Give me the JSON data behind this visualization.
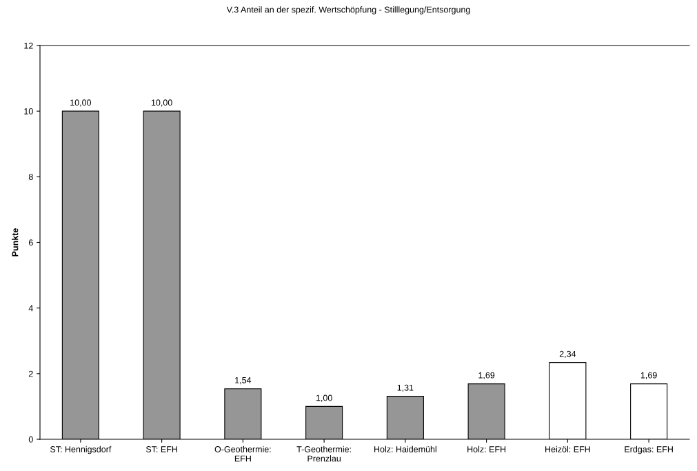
{
  "chart_data": {
    "type": "bar",
    "title": "V.3 Anteil an der spezif. Wertschöpfung - Stilllegung/Entsorgung",
    "ylabel": "Punkte",
    "categories": [
      "ST: Hennigsdorf",
      "ST: EFH",
      "O-Geothermie:\nEFH",
      "T-Geothermie:\nPrenzlau",
      "Holz: Haidemühl",
      "Holz: EFH",
      "Heizöl: EFH",
      "Erdgas: EFH"
    ],
    "values": [
      10.0,
      10.0,
      1.54,
      1.0,
      1.31,
      1.69,
      2.34,
      1.69
    ],
    "colors": [
      "#969696",
      "#969696",
      "#969696",
      "#969696",
      "#969696",
      "#969696",
      "#ffffff",
      "#ffffff"
    ],
    "value_labels": [
      "10,00",
      "10,00",
      "1,54",
      "1,00",
      "1,31",
      "1,69",
      "2,34",
      "1,69"
    ],
    "ylim": [
      0,
      12
    ],
    "yticks": [
      0,
      2,
      4,
      6,
      8,
      10,
      12
    ],
    "grid": false,
    "legend": false
  }
}
